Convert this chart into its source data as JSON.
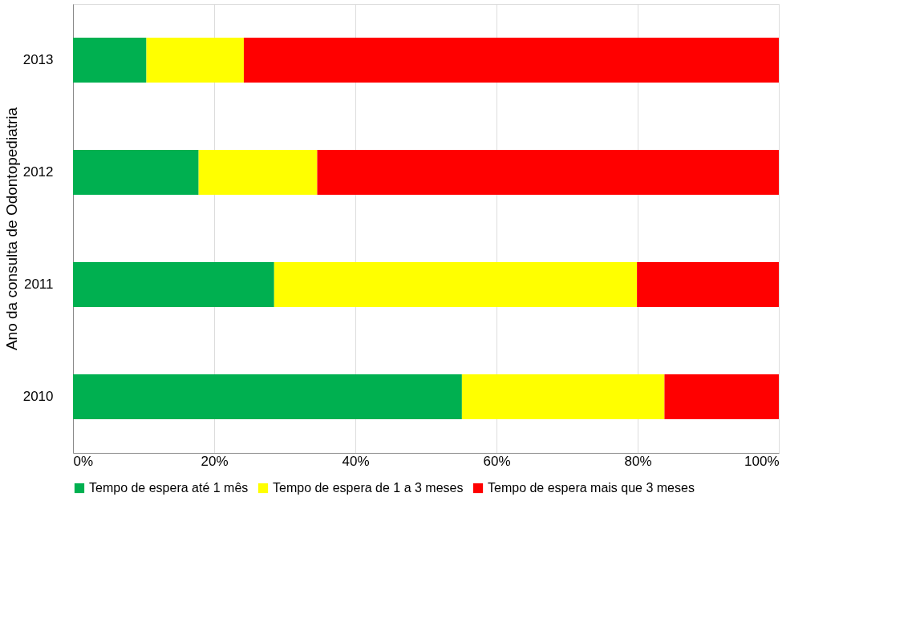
{
  "chart_data": {
    "type": "bar",
    "orientation": "horizontal",
    "stacked": true,
    "ylabel": "Ano da consulta de Odontopediatria",
    "categories": [
      "2013",
      "2012",
      "2011",
      "2010"
    ],
    "series": [
      {
        "name": "Tempo de espera até 1 mês",
        "color": "#00b050",
        "values": [
          10.4,
          17.8,
          28.5,
          55.1
        ]
      },
      {
        "name": "Tempo de espera de 1 a 3 meses",
        "color": "#ffff00",
        "values": [
          13.8,
          16.8,
          51.4,
          28.7
        ]
      },
      {
        "name": "Tempo de espera mais que 3 meses",
        "color": "#ff0000",
        "values": [
          75.8,
          65.4,
          20.1,
          16.2
        ]
      }
    ],
    "xlim": [
      0,
      100
    ],
    "xticks": [
      {
        "value": 0,
        "label": "0%"
      },
      {
        "value": 20,
        "label": "20%"
      },
      {
        "value": 40,
        "label": "40%"
      },
      {
        "value": 60,
        "label": "60%"
      },
      {
        "value": 80,
        "label": "80%"
      },
      {
        "value": 100,
        "label": "100%"
      }
    ],
    "grid": "x",
    "legend": "bottom"
  }
}
